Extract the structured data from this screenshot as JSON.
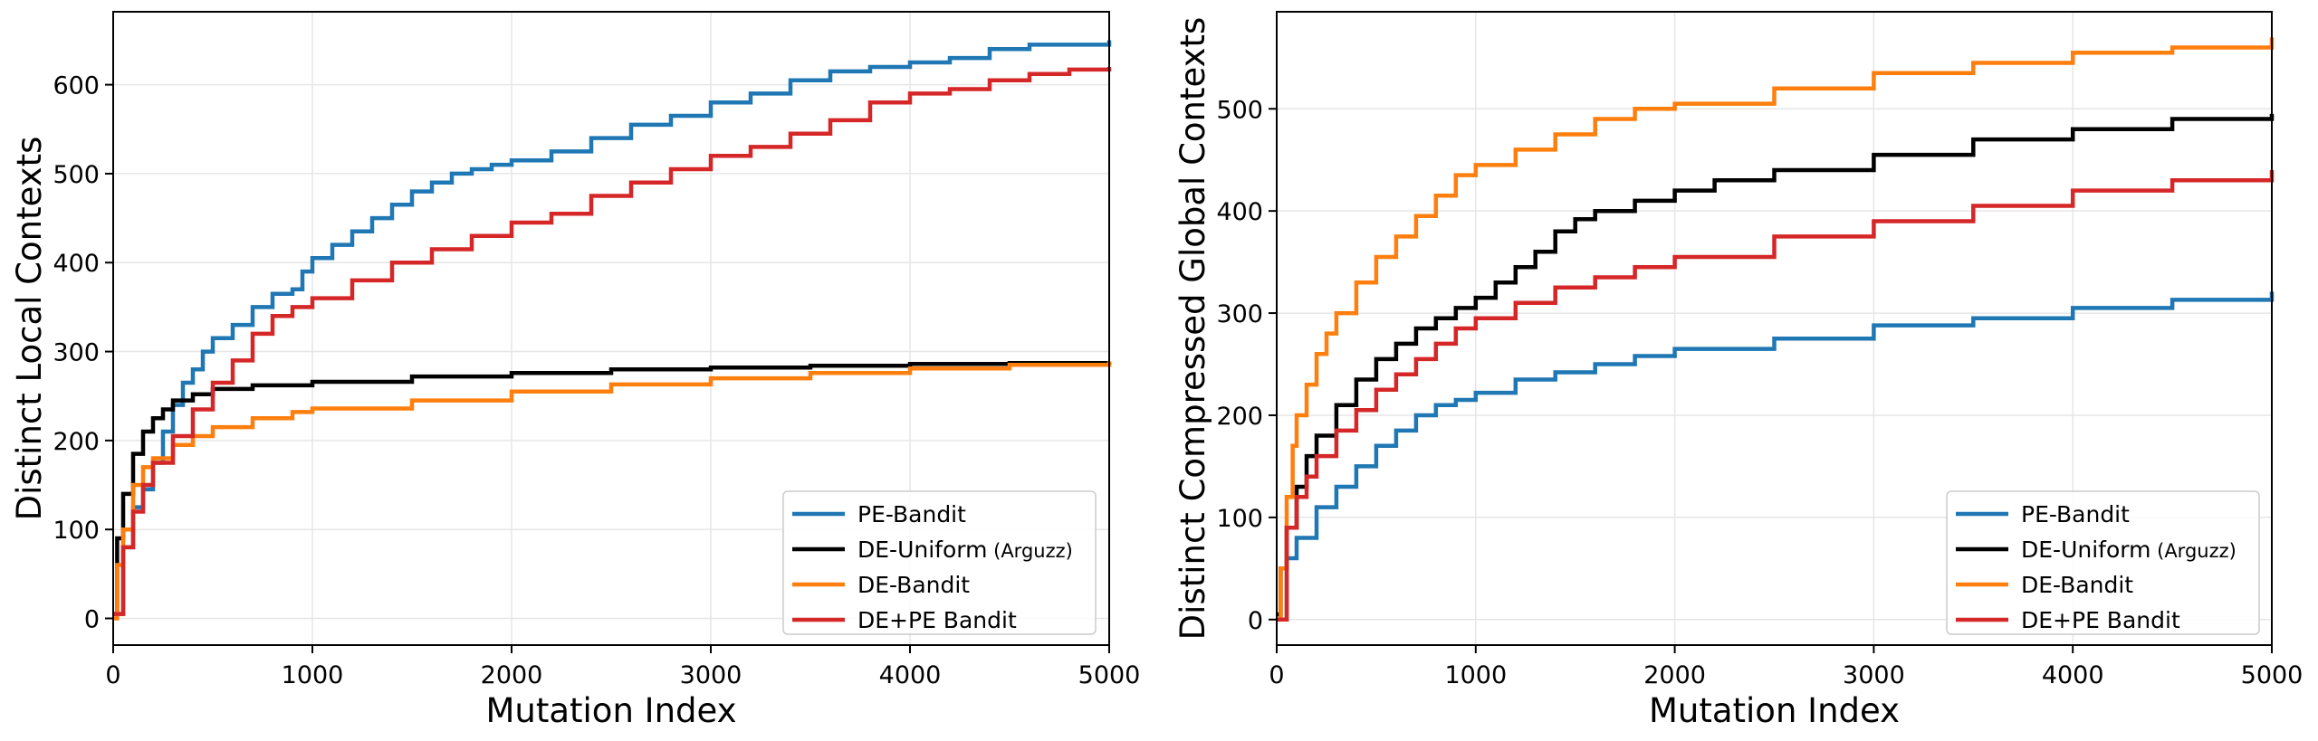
{
  "chart_data": [
    {
      "type": "line",
      "title": "",
      "xlabel": "Mutation Index",
      "ylabel": "Distinct Local Contexts",
      "xlim": [
        0,
        5000
      ],
      "ylim": [
        -30,
        682
      ],
      "xticks": [
        0,
        1000,
        2000,
        3000,
        4000,
        5000
      ],
      "yticks": [
        0,
        100,
        200,
        300,
        400,
        500,
        600
      ],
      "grid": true,
      "legend_position": "lower-right",
      "series": [
        {
          "name": "PE-Bandit",
          "name_suffix": "",
          "color": "#1f77b4",
          "x": [
            0,
            50,
            100,
            150,
            200,
            250,
            300,
            350,
            400,
            450,
            500,
            600,
            700,
            800,
            900,
            950,
            1000,
            1100,
            1200,
            1300,
            1400,
            1500,
            1600,
            1700,
            1800,
            1900,
            2000,
            2200,
            2400,
            2600,
            2800,
            3000,
            3200,
            3400,
            3600,
            3800,
            4000,
            4200,
            4400,
            4600,
            4800,
            5000
          ],
          "y": [
            5,
            80,
            125,
            145,
            175,
            210,
            240,
            265,
            280,
            300,
            315,
            330,
            350,
            365,
            370,
            390,
            405,
            420,
            435,
            450,
            465,
            480,
            490,
            500,
            505,
            510,
            515,
            525,
            540,
            555,
            565,
            580,
            590,
            605,
            615,
            620,
            625,
            630,
            640,
            645,
            645,
            650
          ]
        },
        {
          "name": "DE-Uniform",
          "name_suffix": "(Arguzz)",
          "color": "#000000",
          "x": [
            0,
            20,
            50,
            100,
            150,
            200,
            250,
            300,
            400,
            500,
            700,
            1000,
            1500,
            2000,
            2500,
            3000,
            3500,
            4000,
            4500,
            5000
          ],
          "y": [
            5,
            90,
            140,
            185,
            210,
            225,
            235,
            245,
            252,
            258,
            262,
            266,
            272,
            276,
            280,
            282,
            284,
            286,
            287,
            288
          ]
        },
        {
          "name": "DE-Bandit",
          "name_suffix": "",
          "color": "#ff7f0e",
          "x": [
            0,
            20,
            50,
            100,
            150,
            200,
            300,
            400,
            500,
            700,
            900,
            1000,
            1500,
            2000,
            2500,
            3000,
            3500,
            4000,
            4500,
            5000
          ],
          "y": [
            0,
            60,
            100,
            150,
            170,
            180,
            195,
            205,
            215,
            225,
            232,
            236,
            245,
            255,
            263,
            270,
            276,
            281,
            285,
            289
          ]
        },
        {
          "name": "DE+PE Bandit",
          "name_suffix": "",
          "color": "#d62728",
          "x": [
            0,
            50,
            100,
            150,
            200,
            300,
            400,
            500,
            600,
            700,
            800,
            900,
            1000,
            1200,
            1400,
            1600,
            1800,
            2000,
            2200,
            2400,
            2600,
            2800,
            3000,
            3200,
            3400,
            3600,
            3800,
            4000,
            4200,
            4400,
            4600,
            4800,
            5000
          ],
          "y": [
            5,
            80,
            120,
            150,
            175,
            205,
            235,
            265,
            290,
            320,
            340,
            350,
            360,
            380,
            400,
            415,
            430,
            445,
            455,
            475,
            490,
            505,
            520,
            530,
            545,
            560,
            580,
            590,
            595,
            605,
            612,
            617,
            620
          ]
        }
      ]
    },
    {
      "type": "line",
      "title": "",
      "xlabel": "Mutation Index",
      "ylabel": "Distinct Compressed Global Contexts",
      "xlim": [
        0,
        5000
      ],
      "ylim": [
        -25,
        595
      ],
      "xticks": [
        0,
        1000,
        2000,
        3000,
        4000,
        5000
      ],
      "yticks": [
        0,
        100,
        200,
        300,
        400,
        500
      ],
      "grid": true,
      "legend_position": "lower-right",
      "series": [
        {
          "name": "PE-Bandit",
          "name_suffix": "",
          "color": "#1f77b4",
          "x": [
            0,
            50,
            100,
            200,
            300,
            400,
            500,
            600,
            700,
            800,
            900,
            1000,
            1200,
            1400,
            1600,
            1800,
            2000,
            2500,
            3000,
            3500,
            4000,
            4500,
            5000
          ],
          "y": [
            0,
            60,
            80,
            110,
            130,
            150,
            170,
            185,
            200,
            210,
            215,
            222,
            235,
            242,
            250,
            258,
            265,
            275,
            288,
            295,
            305,
            313,
            321
          ]
        },
        {
          "name": "DE-Uniform",
          "name_suffix": "(Arguzz)",
          "color": "#000000",
          "x": [
            0,
            20,
            50,
            100,
            150,
            200,
            300,
            400,
            500,
            600,
            700,
            800,
            900,
            1000,
            1100,
            1200,
            1300,
            1400,
            1500,
            1600,
            1800,
            2000,
            2200,
            2500,
            3000,
            3500,
            4000,
            4500,
            5000
          ],
          "y": [
            5,
            50,
            90,
            130,
            160,
            180,
            210,
            235,
            255,
            270,
            285,
            295,
            305,
            315,
            330,
            345,
            360,
            380,
            392,
            400,
            410,
            420,
            430,
            440,
            455,
            470,
            480,
            490,
            495
          ]
        },
        {
          "name": "DE-Bandit",
          "name_suffix": "",
          "color": "#ff7f0e",
          "x": [
            0,
            20,
            50,
            80,
            100,
            150,
            200,
            250,
            300,
            400,
            500,
            600,
            700,
            800,
            900,
            1000,
            1200,
            1400,
            1600,
            1800,
            2000,
            2500,
            3000,
            3500,
            4000,
            4500,
            5000
          ],
          "y": [
            0,
            50,
            120,
            170,
            200,
            230,
            260,
            280,
            300,
            330,
            355,
            375,
            395,
            415,
            435,
            445,
            460,
            475,
            490,
            500,
            505,
            520,
            535,
            545,
            555,
            560,
            570
          ]
        },
        {
          "name": "DE+PE Bandit",
          "name_suffix": "",
          "color": "#d62728",
          "x": [
            0,
            50,
            100,
            150,
            200,
            300,
            400,
            500,
            600,
            700,
            800,
            900,
            1000,
            1200,
            1400,
            1600,
            1800,
            2000,
            2500,
            3000,
            3500,
            4000,
            4500,
            5000
          ],
          "y": [
            0,
            90,
            120,
            140,
            160,
            185,
            205,
            225,
            240,
            255,
            270,
            285,
            295,
            310,
            325,
            335,
            345,
            355,
            375,
            390,
            405,
            420,
            430,
            440
          ]
        }
      ]
    }
  ]
}
